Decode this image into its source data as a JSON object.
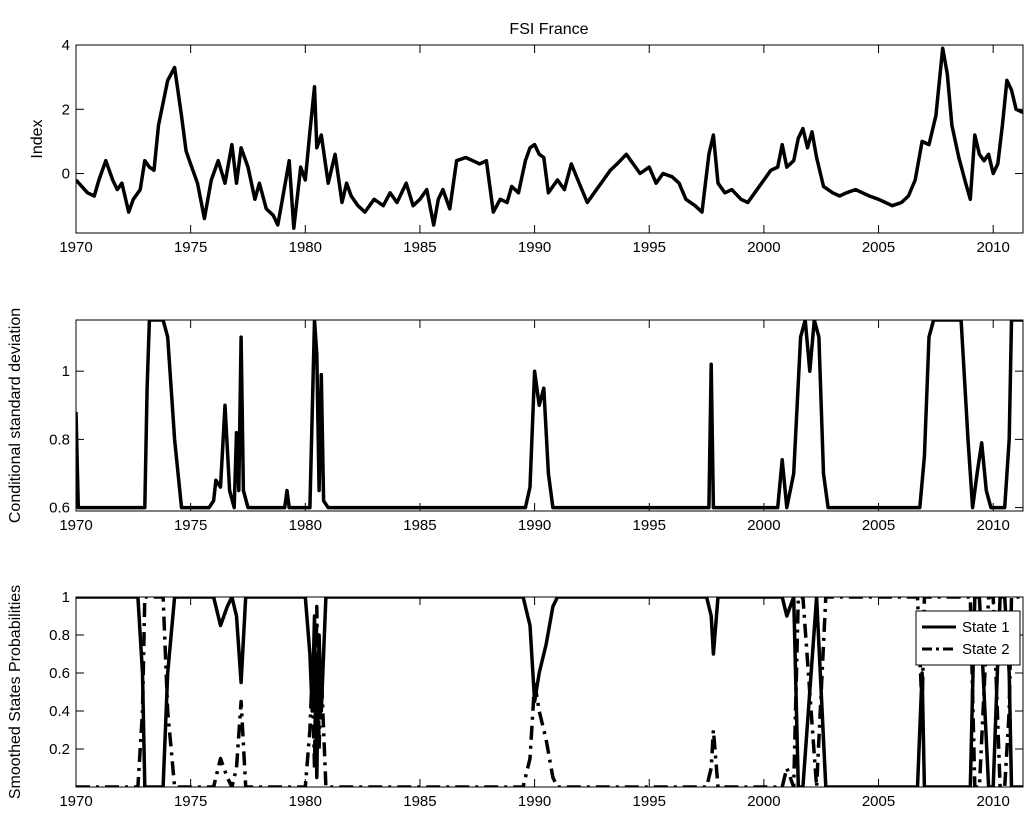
{
  "chart_data": [
    {
      "type": "line",
      "title": "FSI France",
      "xlabel": "",
      "ylabel": "Index",
      "xlim": [
        1970,
        2011.3
      ],
      "ylim": [
        -1.85,
        4.0
      ],
      "xticks": [
        1970,
        1975,
        1980,
        1985,
        1990,
        1995,
        2000,
        2005,
        2010
      ],
      "yticks": [
        0,
        2,
        4
      ],
      "series": [
        {
          "x": [
            1970.0,
            1970.5,
            1970.8,
            1971.0,
            1971.3,
            1971.6,
            1971.8,
            1972.0,
            1972.3,
            1972.5,
            1972.8,
            1973.0,
            1973.2,
            1973.4,
            1973.6,
            1973.8,
            1974.0,
            1974.3,
            1974.6,
            1974.8,
            1975.0,
            1975.3,
            1975.6,
            1975.9,
            1976.2,
            1976.5,
            1976.8,
            1977.0,
            1977.2,
            1977.5,
            1977.8,
            1978.0,
            1978.3,
            1978.6,
            1978.8,
            1979.0,
            1979.3,
            1979.5,
            1979.8,
            1980.0,
            1980.2,
            1980.4,
            1980.5,
            1980.7,
            1981.0,
            1981.3,
            1981.6,
            1981.8,
            1982.0,
            1982.3,
            1982.6,
            1983.0,
            1983.4,
            1983.7,
            1984.0,
            1984.4,
            1984.7,
            1985.0,
            1985.3,
            1985.6,
            1985.8,
            1986.0,
            1986.3,
            1986.6,
            1987.0,
            1987.3,
            1987.6,
            1987.9,
            1988.2,
            1988.5,
            1988.8,
            1989.0,
            1989.3,
            1989.6,
            1989.8,
            1990.0,
            1990.2,
            1990.4,
            1990.6,
            1990.8,
            1991.0,
            1991.3,
            1991.6,
            1992.0,
            1992.3,
            1992.6,
            1993.0,
            1993.3,
            1993.6,
            1994.0,
            1994.3,
            1994.6,
            1995.0,
            1995.3,
            1995.6,
            1996.0,
            1996.3,
            1996.6,
            1997.0,
            1997.3,
            1997.6,
            1997.8,
            1998.0,
            1998.3,
            1998.6,
            1999.0,
            1999.3,
            1999.6,
            2000.0,
            2000.3,
            2000.6,
            2000.8,
            2001.0,
            2001.3,
            2001.5,
            2001.7,
            2001.9,
            2002.1,
            2002.3,
            2002.6,
            2003.0,
            2003.3,
            2003.6,
            2004.0,
            2004.3,
            2004.6,
            2005.0,
            2005.3,
            2005.6,
            2006.0,
            2006.3,
            2006.6,
            2006.9,
            2007.2,
            2007.5,
            2007.8,
            2008.0,
            2008.2,
            2008.5,
            2008.8,
            2009.0,
            2009.2,
            2009.4,
            2009.6,
            2009.8,
            2010.0,
            2010.2,
            2010.4,
            2010.6,
            2010.8,
            2011.0,
            2011.3
          ],
          "y": [
            -0.2,
            -0.6,
            -0.7,
            -0.2,
            0.4,
            -0.2,
            -0.5,
            -0.3,
            -1.2,
            -0.8,
            -0.5,
            0.4,
            0.2,
            0.1,
            1.5,
            2.2,
            2.9,
            3.3,
            1.8,
            0.7,
            0.3,
            -0.3,
            -1.4,
            -0.2,
            0.4,
            -0.3,
            0.9,
            -0.3,
            0.8,
            0.2,
            -0.8,
            -0.3,
            -1.1,
            -1.3,
            -1.6,
            -0.8,
            0.4,
            -1.7,
            0.2,
            -0.2,
            1.3,
            2.7,
            0.8,
            1.2,
            -0.3,
            0.6,
            -0.9,
            -0.3,
            -0.7,
            -1.0,
            -1.2,
            -0.8,
            -1.0,
            -0.6,
            -0.9,
            -0.3,
            -1.0,
            -0.8,
            -0.5,
            -1.6,
            -0.8,
            -0.5,
            -1.1,
            0.4,
            0.5,
            0.4,
            0.3,
            0.4,
            -1.2,
            -0.8,
            -0.9,
            -0.4,
            -0.6,
            0.4,
            0.8,
            0.9,
            0.6,
            0.5,
            -0.6,
            -0.4,
            -0.2,
            -0.5,
            0.3,
            -0.4,
            -0.9,
            -0.6,
            -0.2,
            0.1,
            0.3,
            0.6,
            0.3,
            0.0,
            0.2,
            -0.3,
            0.0,
            -0.1,
            -0.3,
            -0.8,
            -1.0,
            -1.2,
            0.6,
            1.2,
            -0.3,
            -0.6,
            -0.5,
            -0.8,
            -0.9,
            -0.6,
            -0.2,
            0.1,
            0.2,
            0.9,
            0.2,
            0.4,
            1.1,
            1.4,
            0.8,
            1.3,
            0.5,
            -0.4,
            -0.6,
            -0.7,
            -0.6,
            -0.5,
            -0.6,
            -0.7,
            -0.8,
            -0.9,
            -1.0,
            -0.9,
            -0.7,
            -0.2,
            1.0,
            0.9,
            1.8,
            3.9,
            3.1,
            1.5,
            0.5,
            -0.3,
            -0.8,
            1.2,
            0.6,
            0.4,
            0.6,
            0.0,
            0.3,
            1.5,
            2.9,
            2.6,
            2.0,
            1.9
          ]
        }
      ]
    },
    {
      "type": "line",
      "title": "",
      "xlabel": "",
      "ylabel": "Conditional standard deviation",
      "xlim": [
        1970,
        2011.3
      ],
      "ylim": [
        0.59,
        1.15
      ],
      "xticks": [
        1970,
        1975,
        1980,
        1985,
        1990,
        1995,
        2000,
        2005,
        2010
      ],
      "yticks": [
        0.6,
        0.8,
        1
      ],
      "series": [
        {
          "x": [
            1970.0,
            1970.1,
            1970.3,
            1972.8,
            1973.0,
            1973.1,
            1973.2,
            1973.8,
            1974.0,
            1974.3,
            1974.6,
            1975.8,
            1976.0,
            1976.1,
            1976.3,
            1976.5,
            1976.7,
            1976.9,
            1977.0,
            1977.1,
            1977.2,
            1977.3,
            1977.5,
            1979.1,
            1979.2,
            1979.3,
            1980.2,
            1980.4,
            1980.5,
            1980.6,
            1980.7,
            1980.8,
            1981.0,
            1981.3,
            1989.6,
            1989.8,
            1990.0,
            1990.2,
            1990.4,
            1990.6,
            1990.8,
            1997.6,
            1997.7,
            1997.8,
            1998.0,
            2000.6,
            2000.8,
            2001.0,
            2001.3,
            2001.6,
            2001.8,
            2002.0,
            2002.2,
            2002.4,
            2002.6,
            2002.8,
            2003.0,
            2006.8,
            2007.0,
            2007.2,
            2007.4,
            2007.6,
            2008.6,
            2008.9,
            2009.1,
            2009.3,
            2009.5,
            2009.7,
            2009.9,
            2010.5,
            2010.7,
            2010.8,
            2011.3
          ],
          "y": [
            0.88,
            0.6,
            0.6,
            0.6,
            0.6,
            0.95,
            1.15,
            1.15,
            1.1,
            0.8,
            0.6,
            0.6,
            0.62,
            0.68,
            0.66,
            0.9,
            0.65,
            0.6,
            0.82,
            0.65,
            1.1,
            0.65,
            0.6,
            0.6,
            0.65,
            0.6,
            0.6,
            1.15,
            1.05,
            0.65,
            0.99,
            0.62,
            0.6,
            0.6,
            0.6,
            0.66,
            1.0,
            0.9,
            0.95,
            0.7,
            0.6,
            0.6,
            1.02,
            0.6,
            0.6,
            0.6,
            0.74,
            0.6,
            0.7,
            1.1,
            1.15,
            1.0,
            1.15,
            1.1,
            0.7,
            0.6,
            0.6,
            0.6,
            0.75,
            1.1,
            1.15,
            1.15,
            1.15,
            0.8,
            0.6,
            0.7,
            0.79,
            0.65,
            0.6,
            0.6,
            0.8,
            1.15,
            1.15
          ]
        }
      ]
    },
    {
      "type": "line",
      "title": "",
      "xlabel": "",
      "ylabel": "Smoothed States Probabilities",
      "xlim": [
        1970,
        2011.3
      ],
      "ylim": [
        0,
        1.0
      ],
      "xticks": [
        1970,
        1975,
        1980,
        1985,
        1990,
        1995,
        2000,
        2005,
        2010
      ],
      "yticks": [
        0.2,
        0.4,
        0.6,
        0.8,
        1
      ],
      "legend": "top-right",
      "series": [
        {
          "name": "State 1",
          "style": "solid",
          "x": [
            1970.0,
            1972.7,
            1972.9,
            1973.0,
            1973.8,
            1974.0,
            1974.3,
            1976.0,
            1976.3,
            1976.6,
            1976.8,
            1977.0,
            1977.2,
            1977.4,
            1980.0,
            1980.2,
            1980.3,
            1980.4,
            1980.5,
            1980.6,
            1980.7,
            1980.9,
            1989.5,
            1989.8,
            1990.0,
            1990.2,
            1990.5,
            1990.8,
            1991.0,
            1997.5,
            1997.7,
            1997.8,
            1998.0,
            2000.8,
            2001.0,
            2001.3,
            2001.5,
            2001.7,
            2002.3,
            2002.5,
            2002.7,
            2006.7,
            2006.9,
            2007.0,
            2009.0,
            2009.2,
            2009.4,
            2009.8,
            2010.0,
            2010.3,
            2010.5,
            2010.7,
            2010.8,
            2011.3
          ],
          "y": [
            1,
            1,
            0.6,
            0.0,
            0.0,
            0.6,
            1,
            1,
            0.85,
            0.95,
            1,
            0.9,
            0.55,
            1,
            1,
            0.7,
            0.4,
            0.9,
            0.05,
            0.8,
            0.4,
            1,
            1,
            0.85,
            0.45,
            0.6,
            0.75,
            0.95,
            1,
            1,
            0.9,
            0.7,
            1,
            1,
            0.9,
            1,
            0.0,
            0.0,
            1,
            0.5,
            0.0,
            0.0,
            0.6,
            0.0,
            0.0,
            1,
            1,
            0.0,
            0.0,
            1,
            1,
            0.6,
            0.0,
            0.0
          ]
        },
        {
          "name": "State 2",
          "style": "dashdot",
          "x": [
            1970.0,
            1972.7,
            1972.9,
            1973.0,
            1973.8,
            1974.0,
            1974.3,
            1976.0,
            1976.3,
            1976.6,
            1976.8,
            1977.0,
            1977.2,
            1977.4,
            1980.0,
            1980.2,
            1980.3,
            1980.4,
            1980.5,
            1980.6,
            1980.7,
            1980.9,
            1989.5,
            1989.8,
            1990.0,
            1990.2,
            1990.5,
            1990.8,
            1991.0,
            1997.5,
            1997.7,
            1997.8,
            1998.0,
            2000.8,
            2001.0,
            2001.3,
            2001.5,
            2001.7,
            2002.3,
            2002.5,
            2002.7,
            2006.7,
            2006.9,
            2007.0,
            2009.0,
            2009.2,
            2009.4,
            2009.8,
            2010.0,
            2010.3,
            2010.5,
            2010.7,
            2010.8,
            2011.3
          ],
          "y": [
            0,
            0,
            0.4,
            1.0,
            1.0,
            0.4,
            0,
            0,
            0.15,
            0.05,
            0,
            0.1,
            0.45,
            0,
            0,
            0.3,
            0.6,
            0.1,
            0.95,
            0.2,
            0.6,
            0,
            0,
            0.15,
            0.55,
            0.4,
            0.25,
            0.05,
            0,
            0,
            0.1,
            0.3,
            0,
            0,
            0.1,
            0,
            1.0,
            1.0,
            0,
            0.5,
            1.0,
            1.0,
            0.4,
            1.0,
            1.0,
            0,
            0,
            1.0,
            1.0,
            0,
            0,
            0.4,
            1.0,
            1.0
          ]
        }
      ]
    }
  ]
}
